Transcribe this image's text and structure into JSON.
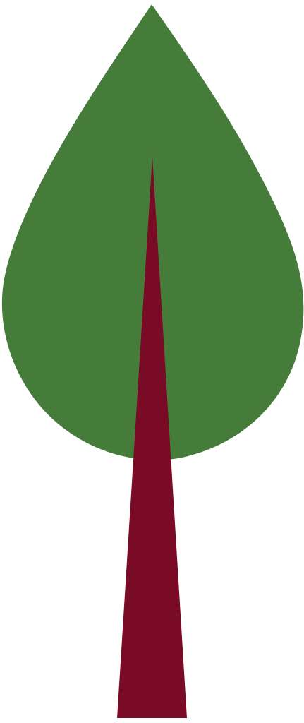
{
  "illustration": {
    "subject": "tree-icon",
    "colors": {
      "background": "#ffffff",
      "foliage": "#467c3a",
      "trunk": "#7a0b27"
    }
  }
}
